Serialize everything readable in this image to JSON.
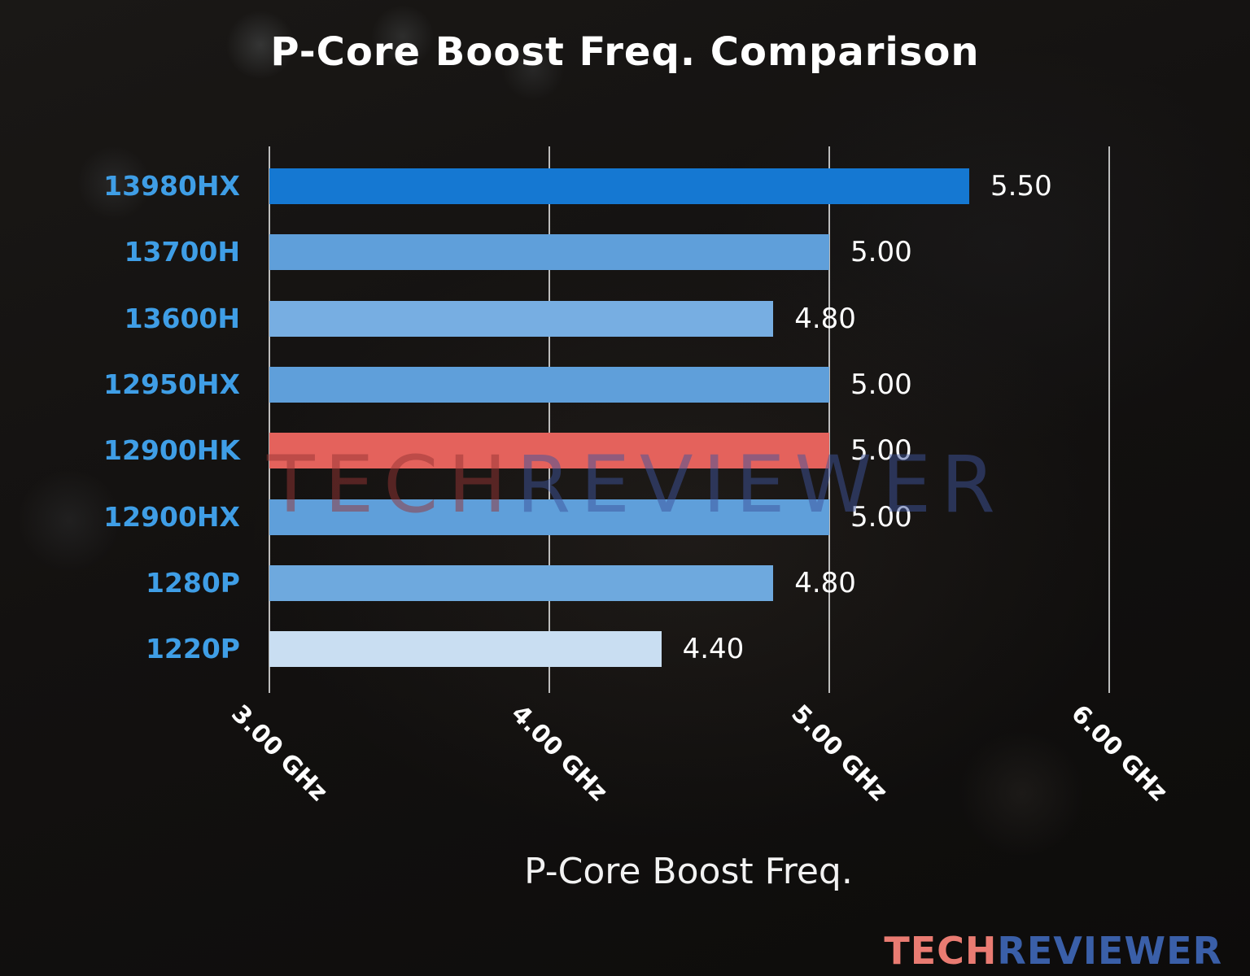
{
  "title": "P-Core Boost Freq. Comparison",
  "watermark": {
    "tech": "TECH",
    "reviewer": "REVIEWER"
  },
  "logo": {
    "tech": "TECH",
    "reviewer": "REVIEWER"
  },
  "chart_data": {
    "type": "bar",
    "orientation": "horizontal",
    "title": "P-Core Boost Freq. Comparison",
    "xlabel": "P-Core Boost Freq.",
    "categories": [
      "13980HX",
      "13700H",
      "13600H",
      "12950HX",
      "12900HK",
      "12900HX",
      "1280P",
      "1220P"
    ],
    "values": [
      5.5,
      5.0,
      4.8,
      5.0,
      5.0,
      5.0,
      4.8,
      4.4
    ],
    "value_labels": [
      "5.50",
      "5.00",
      "4.80",
      "5.00",
      "5.00",
      "5.00",
      "4.80",
      "4.40"
    ],
    "unit": "GHz",
    "bar_colors": [
      "#1578d2",
      "#5f9fda",
      "#77aee2",
      "#5f9fda",
      "#e4625c",
      "#5f9fda",
      "#6ea9de",
      "#c9def2"
    ],
    "highlight_index": 4,
    "highlight_category": "12900HK",
    "x_ticks": [
      {
        "value": 3.0,
        "label": "3.00 GHz"
      },
      {
        "value": 4.0,
        "label": "4.00 GHz"
      },
      {
        "value": 5.0,
        "label": "5.00 GHz"
      },
      {
        "value": 6.0,
        "label": "6.00 GHz"
      }
    ],
    "xlim": [
      3.0,
      6.35
    ],
    "grid": true,
    "legend": "none",
    "category_label_color": "#3f9ee6",
    "value_label_color": "#ffffff",
    "gridline_color": "#d9d9d9"
  }
}
